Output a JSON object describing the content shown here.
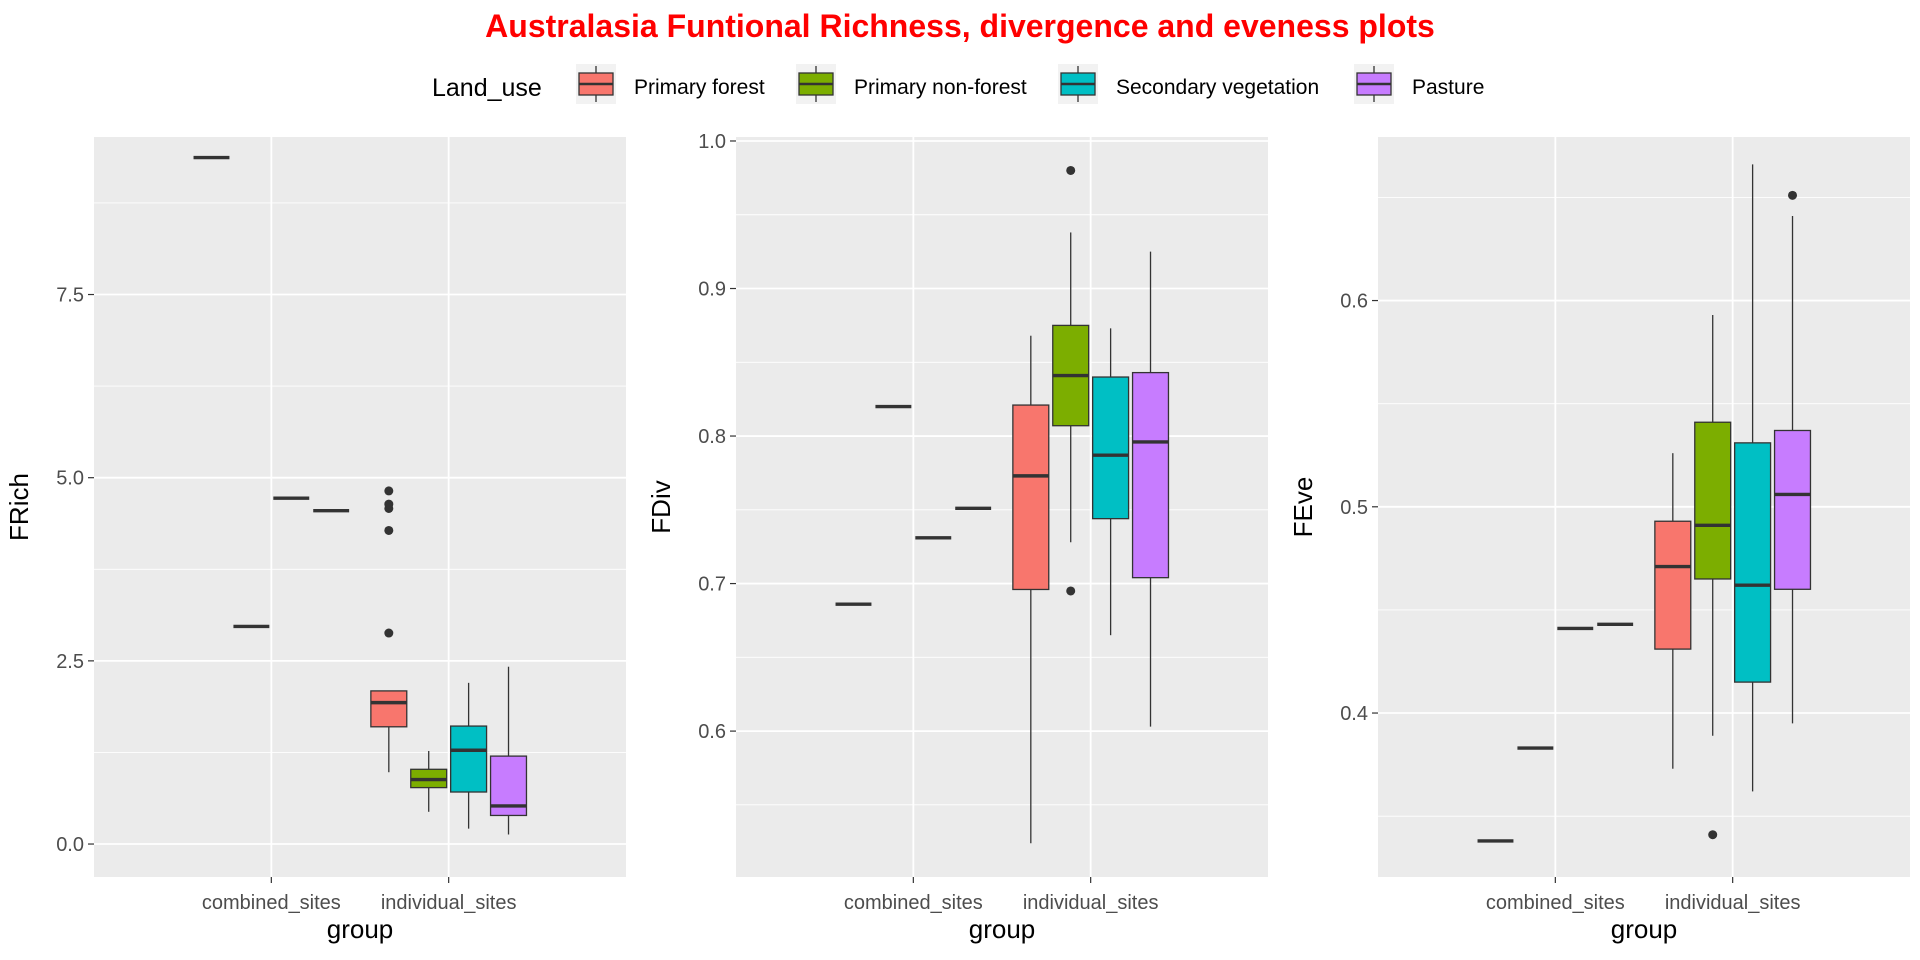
{
  "title": "Australasia Funtional Richness, divergence and eveness plots",
  "title_color": "#ff0000",
  "legend": {
    "title": "Land_use",
    "entries": [
      {
        "label": "Primary forest",
        "color": "#f8766d"
      },
      {
        "label": "Primary non-forest",
        "color": "#7cae00"
      },
      {
        "label": "Secondary vegetation",
        "color": "#00bfc4"
      },
      {
        "label": "Pasture",
        "color": "#c77cff"
      }
    ]
  },
  "chart_data": [
    {
      "type": "boxplot",
      "xlabel": "group",
      "ylabel": "FRich",
      "categories": [
        "combined_sites",
        "individual_sites"
      ],
      "ylim": [
        -0.45,
        9.65
      ],
      "yticks": [
        0,
        2.5,
        5,
        7.5
      ],
      "ytick_labels": [
        "0.0",
        "2.5",
        "5.0",
        "7.5"
      ],
      "grid": true,
      "boxes": [
        {
          "category": "combined_sites",
          "series": "Primary forest",
          "min": 9.37,
          "q1": 9.37,
          "median": 9.37,
          "q3": 9.37,
          "max": 9.37,
          "outliers": []
        },
        {
          "category": "combined_sites",
          "series": "Primary non-forest",
          "min": 2.97,
          "q1": 2.97,
          "median": 2.97,
          "q3": 2.97,
          "max": 2.97,
          "outliers": []
        },
        {
          "category": "combined_sites",
          "series": "Secondary vegetation",
          "min": 4.72,
          "q1": 4.72,
          "median": 4.72,
          "q3": 4.72,
          "max": 4.72,
          "outliers": []
        },
        {
          "category": "combined_sites",
          "series": "Pasture",
          "min": 4.55,
          "q1": 4.55,
          "median": 4.55,
          "q3": 4.55,
          "max": 4.55,
          "outliers": []
        },
        {
          "category": "individual_sites",
          "series": "Primary forest",
          "min": 0.98,
          "q1": 1.6,
          "median": 1.93,
          "q3": 2.09,
          "max": 2.09,
          "outliers": [
            2.88,
            4.28,
            4.58,
            4.64,
            4.82
          ]
        },
        {
          "category": "individual_sites",
          "series": "Primary non-forest",
          "min": 0.44,
          "q1": 0.77,
          "median": 0.88,
          "q3": 1.02,
          "max": 1.27,
          "outliers": []
        },
        {
          "category": "individual_sites",
          "series": "Secondary vegetation",
          "min": 0.21,
          "q1": 0.71,
          "median": 1.28,
          "q3": 1.61,
          "max": 2.2,
          "outliers": []
        },
        {
          "category": "individual_sites",
          "series": "Pasture",
          "min": 0.13,
          "q1": 0.39,
          "median": 0.52,
          "q3": 1.2,
          "max": 2.42,
          "outliers": []
        }
      ]
    },
    {
      "type": "boxplot",
      "xlabel": "group",
      "ylabel": "FDiv",
      "categories": [
        "combined_sites",
        "individual_sites"
      ],
      "ylim": [
        0.5011,
        1.0027
      ],
      "yticks": [
        0.6,
        0.7,
        0.8,
        0.9,
        1.0
      ],
      "ytick_labels": [
        "0.6",
        "0.7",
        "0.8",
        "0.9",
        "1.0"
      ],
      "grid": true,
      "boxes": [
        {
          "category": "combined_sites",
          "series": "Primary forest",
          "min": 0.686,
          "q1": 0.686,
          "median": 0.686,
          "q3": 0.686,
          "max": 0.686,
          "outliers": []
        },
        {
          "category": "combined_sites",
          "series": "Primary non-forest",
          "min": 0.82,
          "q1": 0.82,
          "median": 0.82,
          "q3": 0.82,
          "max": 0.82,
          "outliers": []
        },
        {
          "category": "combined_sites",
          "series": "Secondary vegetation",
          "min": 0.731,
          "q1": 0.731,
          "median": 0.731,
          "q3": 0.731,
          "max": 0.731,
          "outliers": []
        },
        {
          "category": "combined_sites",
          "series": "Pasture",
          "min": 0.751,
          "q1": 0.751,
          "median": 0.751,
          "q3": 0.751,
          "max": 0.751,
          "outliers": []
        },
        {
          "category": "individual_sites",
          "series": "Primary forest",
          "min": 0.524,
          "q1": 0.696,
          "median": 0.773,
          "q3": 0.821,
          "max": 0.868,
          "outliers": []
        },
        {
          "category": "individual_sites",
          "series": "Primary non-forest",
          "min": 0.728,
          "q1": 0.807,
          "median": 0.841,
          "q3": 0.875,
          "max": 0.938,
          "outliers": [
            0.98,
            0.695
          ]
        },
        {
          "category": "individual_sites",
          "series": "Secondary vegetation",
          "min": 0.665,
          "q1": 0.744,
          "median": 0.787,
          "q3": 0.84,
          "max": 0.873,
          "outliers": []
        },
        {
          "category": "individual_sites",
          "series": "Pasture",
          "min": 0.603,
          "q1": 0.704,
          "median": 0.796,
          "q3": 0.843,
          "max": 0.925,
          "outliers": []
        }
      ]
    },
    {
      "type": "boxplot",
      "xlabel": "group",
      "ylabel": "FEve",
      "categories": [
        "combined_sites",
        "individual_sites"
      ],
      "ylim": [
        0.3205,
        0.6793
      ],
      "yticks": [
        0.4,
        0.5,
        0.6
      ],
      "ytick_labels": [
        "0.4",
        "0.5",
        "0.6"
      ],
      "grid": true,
      "boxes": [
        {
          "category": "combined_sites",
          "series": "Primary forest",
          "min": 0.338,
          "q1": 0.338,
          "median": 0.338,
          "q3": 0.338,
          "max": 0.338,
          "outliers": []
        },
        {
          "category": "combined_sites",
          "series": "Primary non-forest",
          "min": 0.383,
          "q1": 0.383,
          "median": 0.383,
          "q3": 0.383,
          "max": 0.383,
          "outliers": []
        },
        {
          "category": "combined_sites",
          "series": "Secondary vegetation",
          "min": 0.441,
          "q1": 0.441,
          "median": 0.441,
          "q3": 0.441,
          "max": 0.441,
          "outliers": []
        },
        {
          "category": "combined_sites",
          "series": "Pasture",
          "min": 0.443,
          "q1": 0.443,
          "median": 0.443,
          "q3": 0.443,
          "max": 0.443,
          "outliers": []
        },
        {
          "category": "individual_sites",
          "series": "Primary forest",
          "min": 0.373,
          "q1": 0.431,
          "median": 0.471,
          "q3": 0.493,
          "max": 0.526,
          "outliers": []
        },
        {
          "category": "individual_sites",
          "series": "Primary non-forest",
          "min": 0.389,
          "q1": 0.465,
          "median": 0.491,
          "q3": 0.541,
          "max": 0.593,
          "outliers": [
            0.341
          ]
        },
        {
          "category": "individual_sites",
          "series": "Secondary vegetation",
          "min": 0.362,
          "q1": 0.415,
          "median": 0.462,
          "q3": 0.531,
          "max": 0.666,
          "outliers": []
        },
        {
          "category": "individual_sites",
          "series": "Pasture",
          "min": 0.395,
          "q1": 0.46,
          "median": 0.506,
          "q3": 0.537,
          "max": 0.641,
          "outliers": [
            0.651
          ]
        }
      ]
    }
  ]
}
